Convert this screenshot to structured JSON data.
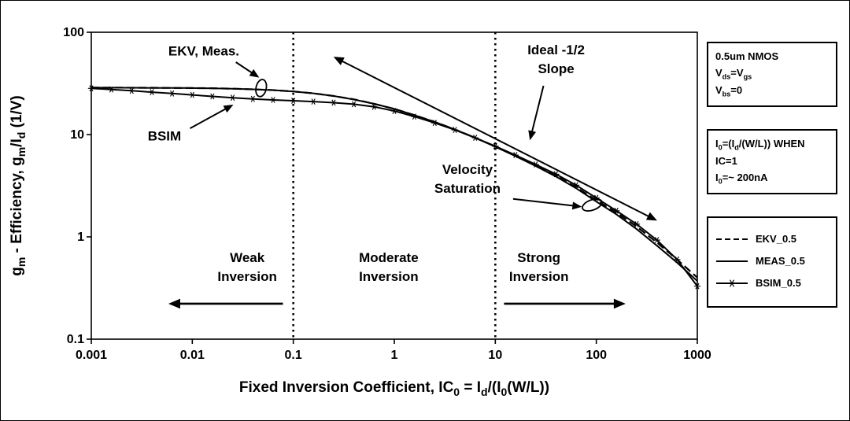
{
  "colors": {
    "ink": "#000000",
    "background": "#ffffff"
  },
  "chart_data": {
    "type": "line",
    "title": "",
    "x_scale": "log",
    "y_scale": "log",
    "xlim": [
      0.001,
      1000
    ],
    "ylim": [
      0.1,
      100
    ],
    "grid": false,
    "legend_position": "right",
    "xlabel_rich": [
      {
        "t": "Fixed Inversion Coefficient, IC"
      },
      {
        "t": "0",
        "sub": true
      },
      {
        "t": " = I"
      },
      {
        "t": "d",
        "sub": true
      },
      {
        "t": "/(I"
      },
      {
        "t": "0",
        "sub": true
      },
      {
        "t": "(W/L))"
      }
    ],
    "ylabel_rich": [
      {
        "t": "g"
      },
      {
        "t": "m",
        "sub": true
      },
      {
        "t": " - Efficiency, g"
      },
      {
        "t": "m",
        "sub": true
      },
      {
        "t": "/I"
      },
      {
        "t": "d",
        "sub": true
      },
      {
        "t": " (1/V)"
      }
    ],
    "x_ticks": [
      {
        "v": 0.001,
        "label": "0.001"
      },
      {
        "v": 0.01,
        "label": "0.01"
      },
      {
        "v": 0.1,
        "label": "0.1"
      },
      {
        "v": 1,
        "label": "1"
      },
      {
        "v": 10,
        "label": "10"
      },
      {
        "v": 100,
        "label": "100"
      },
      {
        "v": 1000,
        "label": "1000"
      }
    ],
    "y_ticks": [
      {
        "v": 0.1,
        "label": "0.1"
      },
      {
        "v": 1,
        "label": "1"
      },
      {
        "v": 10,
        "label": "10"
      },
      {
        "v": 100,
        "label": "100"
      }
    ],
    "x": [
      0.001,
      0.00158,
      0.00251,
      0.00398,
      0.00631,
      0.01,
      0.0158,
      0.0251,
      0.0398,
      0.0631,
      0.1,
      0.158,
      0.251,
      0.398,
      0.631,
      1,
      1.58,
      2.51,
      3.98,
      6.31,
      10,
      15.8,
      25.1,
      39.8,
      63.1,
      100,
      158,
      251,
      398,
      631,
      1000
    ],
    "series": [
      {
        "name": "EKV_0.5",
        "style": "dashed",
        "values": [
          28.8,
          28.8,
          28.7,
          28.7,
          28.6,
          28.5,
          28.4,
          28.1,
          27.7,
          27.2,
          26.4,
          25.3,
          23.8,
          22.1,
          20.0,
          17.8,
          15.5,
          13.3,
          11.2,
          9.3,
          7.65,
          6.2,
          5.0,
          3.95,
          3.06,
          2.28,
          1.73,
          1.26,
          0.88,
          0.6,
          0.4
        ]
      },
      {
        "name": "MEAS_0.5",
        "style": "solid",
        "values": [
          28.8,
          28.7,
          28.7,
          28.6,
          28.6,
          28.5,
          28.3,
          28.1,
          27.7,
          27.2,
          26.4,
          25.3,
          23.8,
          22.0,
          20.0,
          17.8,
          15.5,
          13.3,
          11.2,
          9.3,
          7.6,
          6.17,
          4.92,
          3.89,
          2.99,
          2.21,
          1.66,
          1.19,
          0.82,
          0.56,
          0.37
        ]
      },
      {
        "name": "BSIM_0.5",
        "style": "solid-star",
        "values": [
          28.3,
          27.6,
          26.8,
          26.0,
          25.2,
          24.4,
          23.6,
          22.9,
          22.3,
          21.8,
          21.4,
          21.0,
          20.5,
          19.8,
          18.7,
          17.0,
          15.0,
          13.0,
          11.1,
          9.3,
          7.7,
          6.3,
          5.1,
          4.1,
          3.2,
          2.4,
          1.8,
          1.33,
          0.93,
          0.6,
          0.33
        ]
      }
    ],
    "ideal_line": {
      "x1": 0.25,
      "y1": 57.6,
      "x2": 400,
      "y2": 1.44,
      "slope": -0.5
    },
    "region_dividers": [
      0.1,
      10
    ],
    "annotations": [
      {
        "name": "annotation-ekv-meas",
        "lines": [
          "EKV, Meas."
        ],
        "x": 0.013,
        "y": 66,
        "arrow": {
          "x1": 0.027,
          "y1": 51,
          "x2": 0.046,
          "y2": 36
        }
      },
      {
        "name": "annotation-bsim",
        "lines": [
          "BSIM"
        ],
        "x": 0.0053,
        "y": 9.7,
        "arrow": {
          "x1": 0.0095,
          "y1": 11.5,
          "x2": 0.0255,
          "y2": 19.6
        }
      },
      {
        "name": "annotation-ideal-slope",
        "lines": [
          "Ideal -1/2",
          "Slope"
        ],
        "x": 40,
        "y": 55,
        "arrow": {
          "x1": 30,
          "y1": 30,
          "x2": 22,
          "y2": 8.8
        }
      },
      {
        "name": "annotation-velocity-saturation",
        "lines": [
          "Velocity",
          "Saturation"
        ],
        "x": 5.3,
        "y": 3.7,
        "arrow": {
          "x1": 15,
          "y1": 2.35,
          "x2": 72,
          "y2": 1.97
        }
      }
    ],
    "region_labels": [
      {
        "name": "region-weak-inversion",
        "lines": [
          "Weak",
          "Inversion"
        ],
        "x": 0.035,
        "y": 0.51,
        "arrow": {
          "x1": 0.079,
          "y1": 0.222,
          "x2": 0.0058,
          "y2": 0.222
        }
      },
      {
        "name": "region-moderate-inversion",
        "lines": [
          "Moderate",
          "Inversion"
        ],
        "x": 0.88,
        "y": 0.51
      },
      {
        "name": "region-strong-inversion",
        "lines": [
          "Strong",
          "Inversion"
        ],
        "x": 27,
        "y": 0.51,
        "arrow": {
          "x1": 12.2,
          "y1": 0.222,
          "x2": 195,
          "y2": 0.222
        }
      }
    ],
    "ellipses": [
      {
        "cx": 0.048,
        "cy": 28.5,
        "rx": 6.5,
        "ry": 11,
        "rot": 12
      },
      {
        "cx": 91,
        "cy": 2.05,
        "rx": 13,
        "ry": 6.5,
        "rot": -20
      }
    ]
  },
  "side_panel": {
    "device_box": [
      [
        {
          "t": "0.5um NMOS"
        }
      ],
      [
        {
          "t": "V"
        },
        {
          "t": "ds",
          "sub": true
        },
        {
          "t": "=V"
        },
        {
          "t": "gs",
          "sub": true
        }
      ],
      [
        {
          "t": "V"
        },
        {
          "t": "bs",
          "sub": true
        },
        {
          "t": "=0"
        }
      ]
    ],
    "current_box": [
      [
        {
          "t": "I"
        },
        {
          "t": "0",
          "sub": true
        },
        {
          "t": "=(I"
        },
        {
          "t": "d",
          "sub": true
        },
        {
          "t": "/(W/L)) WHEN"
        }
      ],
      [
        {
          "t": "IC=1"
        }
      ],
      [
        {
          "t": "I"
        },
        {
          "t": "0",
          "sub": true
        },
        {
          "t": "=~ 200nA"
        }
      ]
    ],
    "legend_labels": [
      "EKV_0.5",
      "MEAS_0.5",
      "BSIM_0.5"
    ]
  }
}
